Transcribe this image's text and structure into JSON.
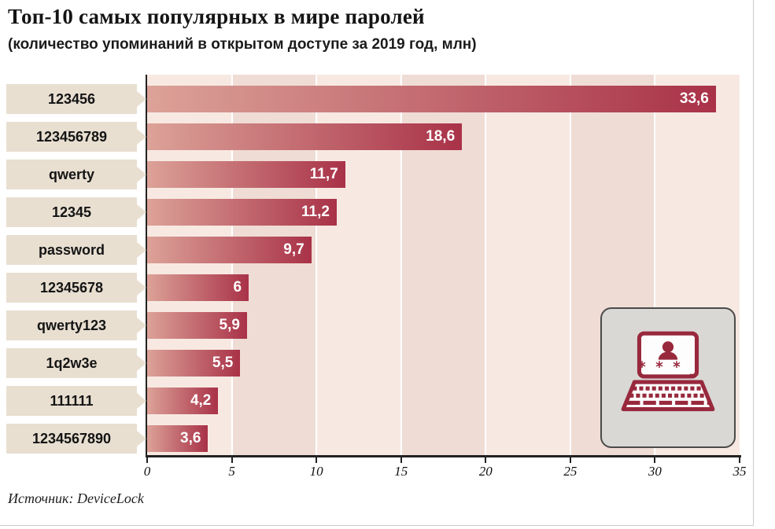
{
  "title": "Топ-10 самых популярных в мире паролей",
  "subtitle": "(количество упоминаний в открытом доступе за 2019 год, млн)",
  "source": "Источник: DeviceLock",
  "icon": {
    "name": "laptop-password-icon",
    "asterisks": "* * * _"
  },
  "chart_data": {
    "type": "bar",
    "orientation": "horizontal",
    "title": "Топ-10 самых популярных в мире паролей",
    "subtitle": "(количество упоминаний в открытом доступе за 2019 год, млн)",
    "categories": [
      "123456",
      "123456789",
      "qwerty",
      "12345",
      "password",
      "12345678",
      "qwerty123",
      "1q2w3e",
      "111111",
      "1234567890"
    ],
    "values": [
      33.6,
      18.6,
      11.7,
      11.2,
      9.7,
      6,
      5.9,
      5.5,
      4.2,
      3.6
    ],
    "value_labels": [
      "33,6",
      "18,6",
      "11,7",
      "11,2",
      "9,7",
      "6",
      "5,9",
      "5,5",
      "4,2",
      "3,6"
    ],
    "xlabel": "",
    "ylabel": "",
    "xlim": [
      0,
      35
    ],
    "xticks": [
      0,
      5,
      10,
      15,
      20,
      25,
      30,
      35
    ],
    "legend": "none",
    "grid": "vertical bands every 5 units with white gridlines",
    "source": "Источник: DeviceLock",
    "colors": {
      "bar_gradient_left": "#dca298",
      "bar_gradient_right": "#a93248",
      "band_light": "#f7e9e2",
      "band_dark": "#efdcd5",
      "category_box": "#e8dfd1",
      "axis": "#222222",
      "value_text": "#ffffff",
      "icon_red": "#98293d",
      "icon_panel_bg": "#d9d8d5"
    }
  }
}
